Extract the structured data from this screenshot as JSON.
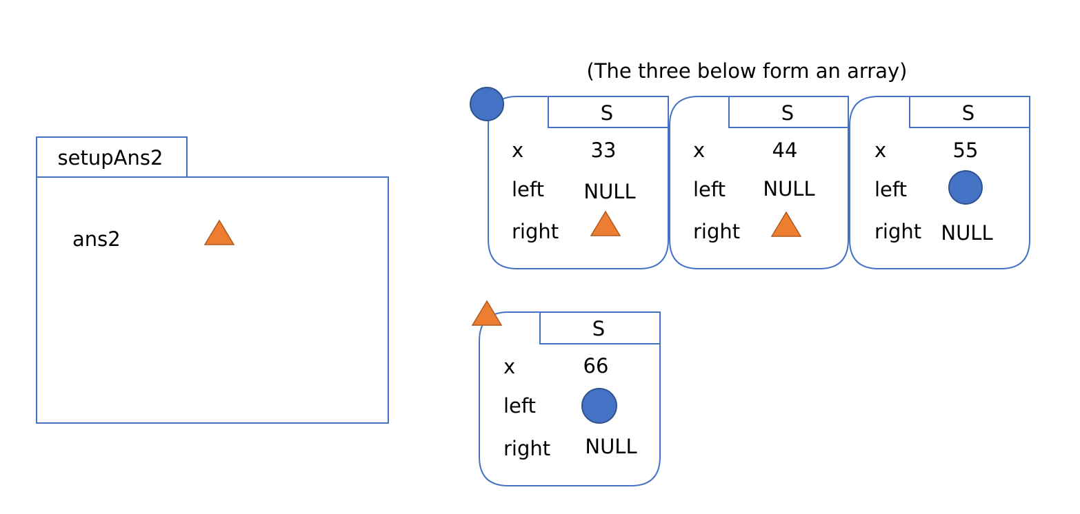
{
  "colors": {
    "border": "#4472C4",
    "circle_fill": "#4472C4",
    "circle_stroke": "#2F528F",
    "triangle_fill": "#ED7D31",
    "triangle_stroke": "#AE5A21",
    "background": "#FFFFFF"
  },
  "frame": {
    "title": "setupAns2",
    "var_name": "ans2",
    "var_value_icon": "triangle-icon"
  },
  "caption": "(The three below form an array)",
  "structs": [
    {
      "type_label": "S",
      "x_label": "x",
      "x": "33",
      "left_label": "left",
      "left": "NULL",
      "right_label": "right",
      "right": "triangle-icon",
      "marker": "circle-icon"
    },
    {
      "type_label": "S",
      "x_label": "x",
      "x": "44",
      "left_label": "left",
      "left": "NULL",
      "right_label": "right",
      "right": "triangle-icon",
      "marker": ""
    },
    {
      "type_label": "S",
      "x_label": "x",
      "x": "55",
      "left_label": "left",
      "left": "circle-icon",
      "right_label": "right",
      "right": "NULL",
      "marker": ""
    },
    {
      "type_label": "S",
      "x_label": "x",
      "x": "66",
      "left_label": "left",
      "left": "circle-icon",
      "right_label": "right",
      "right": "NULL",
      "marker": "triangle-icon"
    }
  ]
}
